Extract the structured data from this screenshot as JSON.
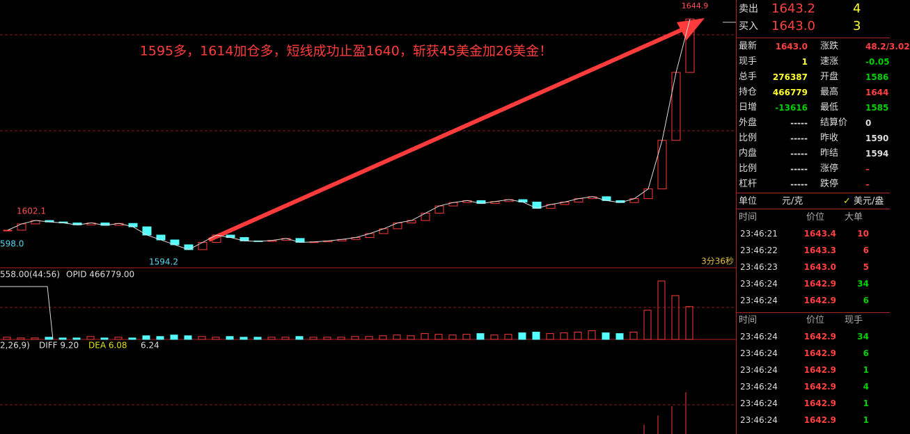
{
  "chart": {
    "annotation": "1595多，1614加仓多，短线成功止盈1640，斩获45美金加26美金！",
    "high_label": 1644.9,
    "low_label": 1594.2,
    "left_high_label": 1602.1,
    "left_edge_label": "598.0",
    "timer": "3分36秒",
    "volume_header": "558.00(44:56)",
    "opid_label": "OPID 466779.00",
    "macd_params": "2,26,9)",
    "diff_label": "DIFF 9.20",
    "dea_label": "DEA 6.08",
    "macd_label": "6.24",
    "closes": [
      1599.5,
      1600.8,
      1601.5,
      1601.2,
      1601.0,
      1600.6,
      1601.0,
      1600.5,
      1600.9,
      1600.2,
      1598.5,
      1597.5,
      1596.5,
      1595.5,
      1597.0,
      1598.5,
      1598.0,
      1597.3,
      1597.2,
      1597.4,
      1597.8,
      1597.0,
      1597.1,
      1597.3,
      1597.6,
      1598.0,
      1598.8,
      1599.8,
      1601.0,
      1601.5,
      1603.0,
      1604.5,
      1605.2,
      1605.6,
      1605.0,
      1605.4,
      1605.8,
      1605.3,
      1604.0,
      1604.8,
      1605.3,
      1606.0,
      1606.4,
      1605.6,
      1605.2,
      1606.0,
      1608.0,
      1618.0,
      1632.0,
      1643.0
    ],
    "volumes": [
      3,
      2,
      2,
      3,
      2,
      2,
      4,
      2,
      3,
      2,
      5,
      4,
      6,
      5,
      4,
      3,
      4,
      3,
      3,
      3,
      3,
      4,
      3,
      3,
      3,
      4,
      4,
      5,
      6,
      5,
      8,
      7,
      6,
      7,
      8,
      6,
      7,
      9,
      10,
      8,
      9,
      10,
      12,
      9,
      8,
      10,
      40,
      80,
      60,
      45
    ],
    "macd": [
      0,
      0,
      0,
      0,
      0,
      0,
      0,
      0,
      0,
      0,
      0,
      0,
      0,
      0,
      0,
      0,
      0,
      0,
      0,
      0,
      0,
      0,
      0,
      0,
      0,
      0,
      0,
      0,
      0,
      0,
      0,
      0,
      0,
      0,
      0,
      0,
      0,
      0,
      0,
      0,
      0,
      0,
      0,
      0,
      0,
      0,
      2,
      4,
      6,
      9
    ]
  },
  "panel": {
    "quote": [
      {
        "label": "卖出",
        "price": "1643.2",
        "qty": "4"
      },
      {
        "label": "买入",
        "price": "1643.0",
        "qty": "3"
      }
    ],
    "stats": [
      [
        "最新",
        "1643.0",
        "涨跌",
        "48.2/3.02"
      ],
      [
        "现手",
        "1",
        "速涨",
        "-0.05"
      ],
      [
        "总手",
        "276387",
        "开盘",
        "1586"
      ],
      [
        "持仓",
        "466779",
        "最高",
        "1644"
      ],
      [
        "日增",
        "-13616",
        "最低",
        "1585"
      ],
      [
        "外盘",
        "-----",
        "结算价",
        "0"
      ],
      [
        "比例",
        "-----",
        "昨收",
        "1590"
      ],
      [
        "内盘",
        "-----",
        "昨结",
        "1594"
      ],
      [
        "比例",
        "-----",
        "涨停",
        "–"
      ],
      [
        "杠杆",
        "-----",
        "跌停",
        "–"
      ]
    ],
    "unit": [
      "单位",
      "元/克",
      "美元/盎"
    ],
    "big_orders": {
      "header": [
        "时间",
        "价位",
        "大单"
      ],
      "rows": [
        [
          "23:46:21",
          "1643.4",
          "10"
        ],
        [
          "23:46:22",
          "1643.3",
          "6"
        ],
        [
          "23:46:23",
          "1643.0",
          "5"
        ],
        [
          "23:46:24",
          "1642.9",
          "34"
        ],
        [
          "23:46:24",
          "1642.9",
          "6"
        ]
      ]
    },
    "ticks": {
      "header": [
        "时间",
        "价位",
        "现手"
      ],
      "rows": [
        [
          "23:46:24",
          "1642.9",
          "34"
        ],
        [
          "23:46:24",
          "1642.9",
          "6"
        ],
        [
          "23:46:24",
          "1642.9",
          "1"
        ],
        [
          "23:46:24",
          "1642.9",
          "4"
        ],
        [
          "23:46:24",
          "1642.9",
          "1"
        ],
        [
          "23:46:24",
          "1642.9",
          "1"
        ]
      ]
    }
  }
}
